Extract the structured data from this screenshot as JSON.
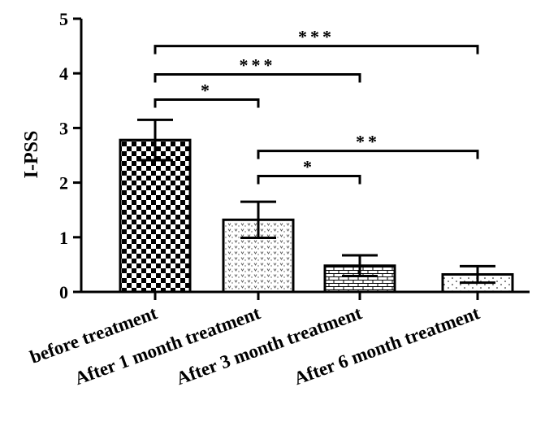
{
  "chart_data": {
    "type": "bar",
    "title": "",
    "xlabel": "",
    "ylabel": "I-PSS",
    "ylim": [
      0,
      5
    ],
    "yticks": [
      "0",
      "1",
      "2",
      "3",
      "4",
      "5"
    ],
    "categories": [
      "Before treatment",
      "After 1 month treatment",
      "After 3 month treatment",
      "After 6 month treatment"
    ],
    "category_labels_shown": [
      "before treatment",
      "After 1 month treatment",
      "After 3 month treatment",
      "After 6 month treatment"
    ],
    "values": [
      2.78,
      1.32,
      0.48,
      0.32
    ],
    "error_bars": [
      0.37,
      0.33,
      0.19,
      0.15
    ],
    "bar_patterns": [
      "checkerboard",
      "dotted-v",
      "brick",
      "sparse-dots"
    ],
    "significance": [
      {
        "from": 0,
        "to": 3,
        "label": "***",
        "level": 4.5
      },
      {
        "from": 0,
        "to": 2,
        "label": "***",
        "level": 3.98
      },
      {
        "from": 0,
        "to": 1,
        "label": "*",
        "level": 3.52
      },
      {
        "from": 1,
        "to": 3,
        "label": "**",
        "level": 2.58
      },
      {
        "from": 1,
        "to": 2,
        "label": "*",
        "level": 2.12
      }
    ],
    "grid": false,
    "legend": "none"
  }
}
